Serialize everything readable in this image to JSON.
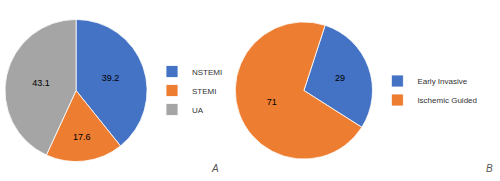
{
  "chart_data": [
    {
      "type": "pie",
      "categories": [
        "NSTEMI",
        "STEMI",
        "UA"
      ],
      "values": [
        39.2,
        17.6,
        43.1
      ],
      "colors": [
        "#4472C4",
        "#ED7D31",
        "#A5A5A5"
      ],
      "data_labels": true,
      "annotations": [
        "A"
      ],
      "legend": "right"
    },
    {
      "type": "pie",
      "categories": [
        "Early Invasive",
        "Ischemic Guided"
      ],
      "values": [
        29,
        71
      ],
      "colors": [
        "#4472C4",
        "#ED7D31"
      ],
      "data_labels": true,
      "annotations": [
        "B"
      ],
      "legend": "right"
    }
  ]
}
